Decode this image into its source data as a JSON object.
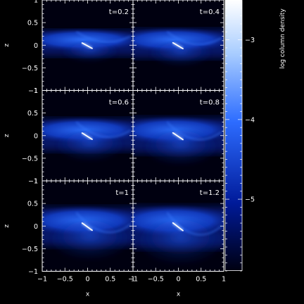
{
  "chart_data": {
    "type": "heatmap",
    "grid": {
      "rows": 3,
      "cols": 2
    },
    "panels": [
      {
        "label": "t=0.2"
      },
      {
        "label": "t=0.4"
      },
      {
        "label": "t=0.6"
      },
      {
        "label": "t=0.8"
      },
      {
        "label": "t=1"
      },
      {
        "label": "t=1.2"
      }
    ],
    "xlabel": "x",
    "ylabel": "z",
    "xlim": [
      -1,
      1
    ],
    "ylim": [
      -1,
      1
    ],
    "x_ticks": [
      "−1",
      "−0.5",
      "0",
      "0.5",
      "1"
    ],
    "y_ticks": [
      "−1",
      "−0.5",
      "0",
      "0.5",
      "1"
    ],
    "colorbar": {
      "label": "log column density",
      "range": [
        -5.9,
        -2.5
      ],
      "ticks": [
        {
          "value": -3,
          "label": "−3"
        },
        {
          "value": -4,
          "label": "−4"
        },
        {
          "value": -5,
          "label": "−5"
        }
      ],
      "colors": [
        "#000010",
        "#001a99",
        "#2d6cff",
        "#a7ccff",
        "#ffffff"
      ]
    }
  }
}
